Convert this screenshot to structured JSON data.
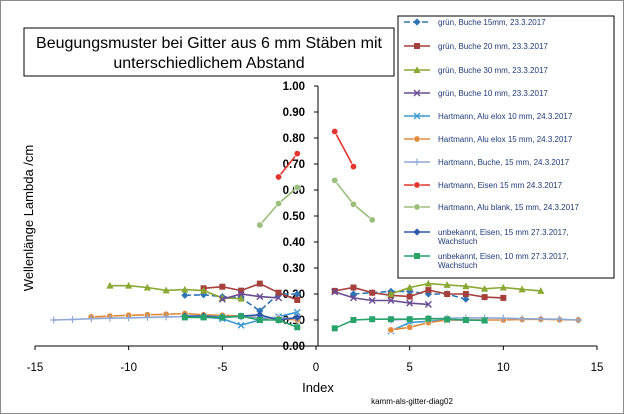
{
  "chart_data": {
    "type": "scatter",
    "title": "Beugungsmuster bei Gitter aus 6 mm Stäben mit unterschiedlichem Abstand",
    "title_lines": [
      "Beugungsmuster bei Gitter aus 6 mm Stäben mit",
      "unterschiedlichem Abstand"
    ],
    "xlabel": "Index",
    "ylabel": "Wellenlänge Lambda /cm",
    "xlim": [
      -15,
      15
    ],
    "ylim": [
      0,
      1
    ],
    "x_ticks": [
      -15,
      -10,
      -5,
      0,
      5,
      10,
      15
    ],
    "y_ticks": [
      "0.00",
      "0.10",
      "0.20",
      "0.30",
      "0.40",
      "0.50",
      "0.60",
      "0.70",
      "0.80",
      "0.90",
      "1.00"
    ],
    "grid": false,
    "legend_position": "right",
    "annotation": "kamm-als-gitter-diag02",
    "series": [
      {
        "name": "grün, Buche 15mm, 23.3.2017",
        "color": "#2e75b6",
        "marker": "diamond",
        "dash": "6,3",
        "points": [
          [
            -7,
            0.195
          ],
          [
            -6,
            0.197
          ],
          [
            -5,
            0.19
          ],
          [
            -4,
            0.185
          ],
          [
            -3,
            0.135
          ],
          [
            -2,
            0.2
          ],
          [
            -1,
            0.2
          ],
          [
            2,
            0.2
          ],
          [
            3,
            0.205
          ],
          [
            4,
            0.21
          ],
          [
            5,
            0.21
          ],
          [
            6,
            0.2
          ],
          [
            7,
            0.2
          ],
          [
            8,
            0.18
          ]
        ]
      },
      {
        "name": "grün, Buche 20 mm, 23.3.2017",
        "color": "#a5403c",
        "marker": "square",
        "dash": "",
        "points": [
          [
            -6,
            0.222
          ],
          [
            -5,
            0.228
          ],
          [
            -4,
            0.213
          ],
          [
            -3,
            0.24
          ],
          [
            -2,
            0.205
          ],
          [
            -1,
            0.177
          ],
          [
            1,
            0.212
          ],
          [
            2,
            0.225
          ],
          [
            3,
            0.205
          ],
          [
            4,
            0.195
          ],
          [
            5,
            0.19
          ],
          [
            6,
            0.215
          ],
          [
            7,
            0.2
          ],
          [
            8,
            0.2
          ],
          [
            9,
            0.188
          ],
          [
            10,
            0.185
          ]
        ]
      },
      {
        "name": "grün, Buche 30 mm, 23.3.2017",
        "color": "#8aa832",
        "marker": "triangle",
        "dash": "",
        "points": [
          [
            -11,
            0.232
          ],
          [
            -10,
            0.232
          ],
          [
            -9,
            0.225
          ],
          [
            -8,
            0.214
          ],
          [
            -7,
            0.217
          ],
          [
            -6,
            0.213
          ],
          [
            -5,
            0.185
          ],
          [
            -4,
            0.182
          ],
          [
            4,
            0.2
          ],
          [
            5,
            0.225
          ],
          [
            6,
            0.24
          ],
          [
            7,
            0.235
          ],
          [
            8,
            0.23
          ],
          [
            9,
            0.22
          ],
          [
            10,
            0.225
          ],
          [
            11,
            0.218
          ],
          [
            12,
            0.212
          ]
        ]
      },
      {
        "name": "grün, Buche 10 mm, 23.3.2017",
        "color": "#6a4c93",
        "marker": "x",
        "dash": "",
        "points": [
          [
            -5,
            0.18
          ],
          [
            -4,
            0.2
          ],
          [
            -3,
            0.19
          ],
          [
            -2,
            0.185
          ],
          [
            1,
            0.208
          ],
          [
            2,
            0.185
          ],
          [
            3,
            0.175
          ],
          [
            4,
            0.175
          ],
          [
            5,
            0.165
          ],
          [
            6,
            0.16
          ]
        ]
      },
      {
        "name": "Hartmann, Alu elox 10 mm, 24.3.2017",
        "color": "#3d9ad1",
        "marker": "x",
        "dash": "",
        "points": [
          [
            -6,
            0.112
          ],
          [
            -5,
            0.105
          ],
          [
            -4,
            0.08
          ],
          [
            -3,
            0.1
          ],
          [
            -2,
            0.113
          ],
          [
            -1,
            0.13
          ],
          [
            4,
            0.058
          ],
          [
            5,
            0.09
          ],
          [
            6,
            0.095
          ],
          [
            7,
            0.1
          ],
          [
            8,
            0.1
          ],
          [
            9,
            0.1
          ]
        ]
      },
      {
        "name": "Hartmann, Alu elox 15 mm, 24.3.2017",
        "color": "#e08a3c",
        "marker": "circle",
        "dash": "",
        "points": [
          [
            -12,
            0.112
          ],
          [
            -11,
            0.115
          ],
          [
            -10,
            0.118
          ],
          [
            -9,
            0.12
          ],
          [
            -8,
            0.122
          ],
          [
            -7,
            0.125
          ],
          [
            -6,
            0.12
          ],
          [
            -5,
            0.118
          ],
          [
            -4,
            0.115
          ],
          [
            -3,
            0.11
          ],
          [
            -2,
            0.105
          ],
          [
            -1,
            0.1
          ],
          [
            4,
            0.062
          ],
          [
            5,
            0.072
          ],
          [
            6,
            0.09
          ],
          [
            7,
            0.1
          ],
          [
            8,
            0.1
          ],
          [
            9,
            0.1
          ],
          [
            10,
            0.1
          ],
          [
            11,
            0.102
          ],
          [
            12,
            0.103
          ],
          [
            13,
            0.101
          ],
          [
            14,
            0.1
          ]
        ]
      },
      {
        "name": "Hartmann, Buche, 15 mm, 24.3.2017",
        "color": "#8fa8d6",
        "marker": "plus",
        "dash": "",
        "points": [
          [
            -14,
            0.1
          ],
          [
            -13,
            0.102
          ],
          [
            -12,
            0.105
          ],
          [
            -11,
            0.107
          ],
          [
            -10,
            0.108
          ],
          [
            -9,
            0.11
          ],
          [
            -8,
            0.112
          ],
          [
            -7,
            0.113
          ],
          [
            -6,
            0.115
          ],
          [
            -5,
            0.113
          ],
          [
            -4,
            0.112
          ],
          [
            -3,
            0.11
          ],
          [
            -2,
            0.108
          ],
          [
            -1,
            0.105
          ],
          [
            4,
            0.1
          ],
          [
            5,
            0.103
          ],
          [
            6,
            0.105
          ],
          [
            7,
            0.107
          ],
          [
            8,
            0.108
          ],
          [
            9,
            0.108
          ],
          [
            10,
            0.107
          ],
          [
            11,
            0.105
          ],
          [
            12,
            0.104
          ],
          [
            13,
            0.103
          ],
          [
            14,
            0.1
          ]
        ]
      },
      {
        "name": "Hartmann, Eisen 15 mm 24.3.2017",
        "color": "#e3342f",
        "marker": "circle",
        "dash": "",
        "points": [
          [
            -2,
            0.65
          ],
          [
            -1,
            0.74
          ],
          [
            1,
            0.825
          ],
          [
            2,
            0.69
          ]
        ]
      },
      {
        "name": "Hartmann, Alu blank, 15 mm, 24.3.2017",
        "color": "#9bbf7a",
        "marker": "circle",
        "dash": "",
        "points": [
          [
            -3,
            0.465
          ],
          [
            -2,
            0.548
          ],
          [
            -1,
            0.61
          ],
          [
            1,
            0.637
          ],
          [
            2,
            0.545
          ],
          [
            3,
            0.485
          ]
        ]
      },
      {
        "name": "unbekannt, Eisen, 15 mm 27.3.2017, Wachstuch",
        "color": "#2e5aa8",
        "marker": "diamond",
        "dash": "",
        "points": [
          [
            -7,
            0.115
          ],
          [
            -6,
            0.115
          ],
          [
            -5,
            0.11
          ],
          [
            -4,
            0.115
          ],
          [
            -3,
            0.12
          ],
          [
            -2,
            0.1
          ],
          [
            -1,
            0.11
          ]
        ]
      },
      {
        "name": "unbekannt, Eisen, 10 mm 27.3.2017, Wachstuch",
        "color": "#27a36b",
        "marker": "square",
        "dash": "",
        "points": [
          [
            -7,
            0.11
          ],
          [
            -6,
            0.11
          ],
          [
            -5,
            0.11
          ],
          [
            -4,
            0.115
          ],
          [
            -3,
            0.1
          ],
          [
            -2,
            0.1
          ],
          [
            -1,
            0.072
          ],
          [
            1,
            0.068
          ],
          [
            2,
            0.1
          ],
          [
            3,
            0.103
          ],
          [
            4,
            0.103
          ],
          [
            5,
            0.103
          ],
          [
            6,
            0.105
          ],
          [
            7,
            0.103
          ],
          [
            8,
            0.1
          ],
          [
            9,
            0.098
          ]
        ]
      }
    ]
  }
}
